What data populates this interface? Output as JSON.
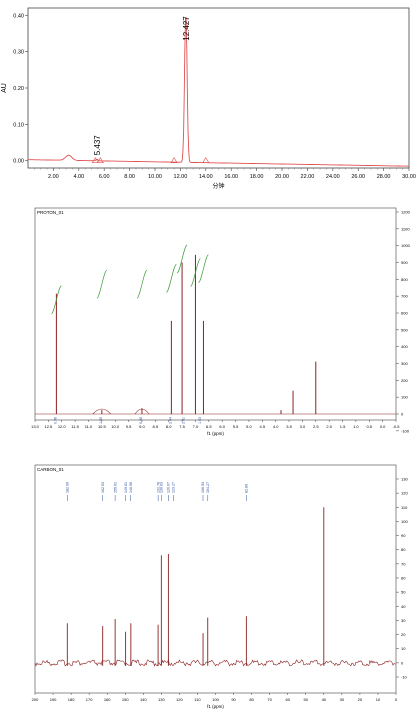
{
  "chart_data": [
    {
      "type": "line",
      "ylabel": "AU",
      "xlabel": "分钟",
      "xlim": [
        0,
        30
      ],
      "ylim": [
        -0.02,
        0.42
      ],
      "x_ticks": [
        "2.00",
        "4.00",
        "6.00",
        "8.00",
        "10.00",
        "12.00",
        "14.00",
        "16.00",
        "18.00",
        "20.00",
        "22.00",
        "24.00",
        "26.00",
        "28.00",
        "30.00"
      ],
      "y_ticks": [
        "0.00",
        "0.10",
        "0.20",
        "0.30",
        "0.40"
      ],
      "peak_labels": [
        {
          "x": 5.437,
          "text": "5.437"
        },
        {
          "x": 12.427,
          "text": "12.427"
        }
      ],
      "series": [
        {
          "color": "#e05050"
        }
      ]
    },
    {
      "type": "line",
      "title": "PROTON_01",
      "xlabel": "f1 (ppm)",
      "xlim": [
        13.0,
        -0.5
      ],
      "right_ticks": [
        "1200",
        "1100",
        "1000",
        "900",
        "800",
        "700",
        "600",
        "500",
        "400",
        "300",
        "200",
        "100",
        "0",
        "-100"
      ],
      "x_ticks": [
        "13.0",
        "12.5",
        "12.0",
        "11.5",
        "11.0",
        "10.5",
        "10.0",
        "9.5",
        "9.0",
        "8.5",
        "8.0",
        "7.5",
        "7.0",
        "6.5",
        "6.0",
        "5.5",
        "5.0",
        "4.5",
        "4.0",
        "3.5",
        "3.0",
        "2.5",
        "2.0",
        "1.5",
        "1.0",
        "0.5",
        "0.0",
        "-0.5"
      ],
      "peaks": [
        {
          "ppm": 12.2,
          "h": 0.62
        },
        {
          "ppm": 10.5,
          "h": 0.02
        },
        {
          "ppm": 9.0,
          "h": 0.03
        },
        {
          "ppm": 7.9,
          "h": 0.48
        },
        {
          "ppm": 7.5,
          "h": 0.78
        },
        {
          "ppm": 7.0,
          "h": 0.82
        },
        {
          "ppm": 6.7,
          "h": 0.48
        },
        {
          "ppm": 3.8,
          "h": 0.02
        },
        {
          "ppm": 3.35,
          "h": 0.12
        },
        {
          "ppm": 2.5,
          "h": 0.27
        }
      ],
      "integrals": [
        "0.98",
        "1.05",
        "0.98",
        "2.04",
        "2.01",
        "1.03"
      ],
      "series": [
        {
          "color": "#8b2020"
        }
      ]
    },
    {
      "type": "line",
      "title": "CARBON_01",
      "xlabel": "f1 (ppm)",
      "xlim": [
        200,
        0
      ],
      "right_ticks": [
        "130",
        "120",
        "110",
        "100",
        "90",
        "80",
        "70",
        "60",
        "50",
        "40",
        "30",
        "20",
        "10",
        "0",
        "-10"
      ],
      "x_ticks": [
        "200",
        "190",
        "180",
        "170",
        "160",
        "150",
        "140",
        "130",
        "120",
        "110",
        "100",
        "90",
        "80",
        "70",
        "60",
        "50",
        "40",
        "30",
        "20",
        "10",
        "0"
      ],
      "peak_labels": [
        "182.09",
        "162.53",
        "155.61",
        "149.81",
        "146.96",
        "131.78",
        "130.03",
        "126.07",
        "123.27",
        "106.93",
        "104.27",
        "82.89"
      ],
      "peaks": [
        {
          "ppm": 182.1,
          "h": 28
        },
        {
          "ppm": 162.5,
          "h": 26
        },
        {
          "ppm": 155.6,
          "h": 31
        },
        {
          "ppm": 149.8,
          "h": 22
        },
        {
          "ppm": 146.9,
          "h": 28
        },
        {
          "ppm": 131.8,
          "h": 27
        },
        {
          "ppm": 130.0,
          "h": 76
        },
        {
          "ppm": 126.1,
          "h": 77
        },
        {
          "ppm": 106.9,
          "h": 21
        },
        {
          "ppm": 104.3,
          "h": 32
        },
        {
          "ppm": 82.9,
          "h": 33
        },
        {
          "ppm": 40.0,
          "h": 110
        }
      ],
      "series": [
        {
          "color": "#8b2020"
        }
      ]
    }
  ]
}
